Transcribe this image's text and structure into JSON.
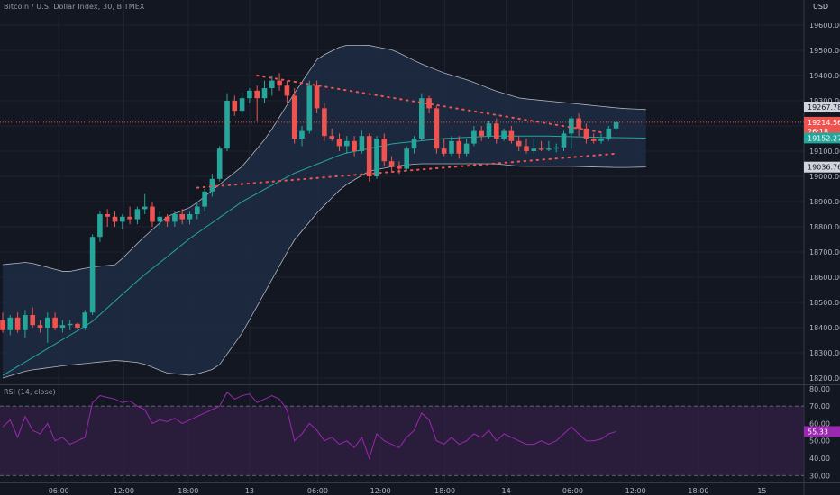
{
  "header": {
    "title": "Bitcoin / U.S. Dollar Index, 30, BITMEX",
    "currency": "USD"
  },
  "rsi_title": "RSI (14, close)",
  "colors": {
    "background": "#131722",
    "up": "#26a69a",
    "down": "#ef5350",
    "band_fill": "#1e2b43",
    "band_line": "#b2b5be",
    "basis": "#26a69a",
    "trendline": "#ef5350",
    "rsi_band": "#3a1f4d",
    "rsi_line": "#9c27b0",
    "grid": "#1f2330"
  },
  "chart_data": [
    {
      "type": "candlestick",
      "indicator": "bollinger-bands",
      "y_ticks": [
        "19600.00",
        "19500.00",
        "19400.00",
        "19300.00",
        "19200.00",
        "19100.00",
        "19000.00",
        "18900.00",
        "18800.00",
        "18700.00",
        "18600.00",
        "18500.00",
        "18400.00",
        "18300.00",
        "18200.00"
      ],
      "ylim": [
        18175,
        19700
      ],
      "x_ticks": [
        "06:00",
        "12:00",
        "18:00",
        "13",
        "06:00",
        "12:00",
        "18:00",
        "14",
        "06:00",
        "12:00",
        "18:00",
        "15"
      ],
      "price_labels": [
        {
          "text": "19267.78",
          "value": 19267.78,
          "kind": "upper"
        },
        {
          "text": "19214.56",
          "value": 19214.56,
          "kind": "last"
        },
        {
          "text": "26:18",
          "value": 19185,
          "kind": "countdown"
        },
        {
          "text": "19152.27",
          "value": 19152.27,
          "kind": "basis"
        },
        {
          "text": "19036.76",
          "value": 19036.76,
          "kind": "lower"
        }
      ],
      "candles": [
        {
          "o": 18430,
          "h": 18460,
          "l": 18380,
          "c": 18390
        },
        {
          "o": 18390,
          "h": 18450,
          "l": 18370,
          "c": 18440
        },
        {
          "o": 18440,
          "h": 18460,
          "l": 18380,
          "c": 18390
        },
        {
          "o": 18390,
          "h": 18470,
          "l": 18360,
          "c": 18450
        },
        {
          "o": 18450,
          "h": 18480,
          "l": 18400,
          "c": 18410
        },
        {
          "o": 18410,
          "h": 18430,
          "l": 18380,
          "c": 18400
        },
        {
          "o": 18400,
          "h": 18460,
          "l": 18340,
          "c": 18440
        },
        {
          "o": 18440,
          "h": 18460,
          "l": 18390,
          "c": 18400
        },
        {
          "o": 18400,
          "h": 18430,
          "l": 18380,
          "c": 18410
        },
        {
          "o": 18410,
          "h": 18430,
          "l": 18390,
          "c": 18415
        },
        {
          "o": 18415,
          "h": 18420,
          "l": 18395,
          "c": 18400
        },
        {
          "o": 18400,
          "h": 18470,
          "l": 18390,
          "c": 18460
        },
        {
          "o": 18460,
          "h": 18770,
          "l": 18450,
          "c": 18760
        },
        {
          "o": 18760,
          "h": 18860,
          "l": 18740,
          "c": 18850
        },
        {
          "o": 18850,
          "h": 18870,
          "l": 18800,
          "c": 18840
        },
        {
          "o": 18840,
          "h": 18860,
          "l": 18800,
          "c": 18820
        },
        {
          "o": 18820,
          "h": 18850,
          "l": 18790,
          "c": 18840
        },
        {
          "o": 18840,
          "h": 18880,
          "l": 18810,
          "c": 18830
        },
        {
          "o": 18830,
          "h": 18880,
          "l": 18810,
          "c": 18870
        },
        {
          "o": 18870,
          "h": 18930,
          "l": 18850,
          "c": 18880
        },
        {
          "o": 18880,
          "h": 18900,
          "l": 18800,
          "c": 18820
        },
        {
          "o": 18820,
          "h": 18860,
          "l": 18790,
          "c": 18840
        },
        {
          "o": 18840,
          "h": 18850,
          "l": 18800,
          "c": 18820
        },
        {
          "o": 18820,
          "h": 18860,
          "l": 18800,
          "c": 18850
        },
        {
          "o": 18850,
          "h": 18870,
          "l": 18810,
          "c": 18830
        },
        {
          "o": 18830,
          "h": 18860,
          "l": 18810,
          "c": 18850
        },
        {
          "o": 18850,
          "h": 18900,
          "l": 18830,
          "c": 18880
        },
        {
          "o": 18880,
          "h": 18950,
          "l": 18860,
          "c": 18940
        },
        {
          "o": 18940,
          "h": 19010,
          "l": 18920,
          "c": 18990
        },
        {
          "o": 18990,
          "h": 19120,
          "l": 18980,
          "c": 19110
        },
        {
          "o": 19110,
          "h": 19330,
          "l": 19100,
          "c": 19300
        },
        {
          "o": 19300,
          "h": 19320,
          "l": 19240,
          "c": 19260
        },
        {
          "o": 19260,
          "h": 19330,
          "l": 19240,
          "c": 19310
        },
        {
          "o": 19310,
          "h": 19350,
          "l": 19290,
          "c": 19340
        },
        {
          "o": 19340,
          "h": 19360,
          "l": 19220,
          "c": 19310
        },
        {
          "o": 19310,
          "h": 19380,
          "l": 19290,
          "c": 19350
        },
        {
          "o": 19350,
          "h": 19400,
          "l": 19320,
          "c": 19380
        },
        {
          "o": 19380,
          "h": 19410,
          "l": 19340,
          "c": 19360
        },
        {
          "o": 19360,
          "h": 19380,
          "l": 19290,
          "c": 19320
        },
        {
          "o": 19320,
          "h": 19350,
          "l": 19130,
          "c": 19150
        },
        {
          "o": 19150,
          "h": 19200,
          "l": 19120,
          "c": 19180
        },
        {
          "o": 19180,
          "h": 19380,
          "l": 19170,
          "c": 19360
        },
        {
          "o": 19360,
          "h": 19380,
          "l": 19250,
          "c": 19270
        },
        {
          "o": 19270,
          "h": 19290,
          "l": 19140,
          "c": 19160
        },
        {
          "o": 19160,
          "h": 19190,
          "l": 19140,
          "c": 19150
        },
        {
          "o": 19150,
          "h": 19170,
          "l": 19100,
          "c": 19120
        },
        {
          "o": 19120,
          "h": 19160,
          "l": 19090,
          "c": 19140
        },
        {
          "o": 19140,
          "h": 19160,
          "l": 19080,
          "c": 19100
        },
        {
          "o": 19100,
          "h": 19180,
          "l": 19090,
          "c": 19160
        },
        {
          "o": 19160,
          "h": 19170,
          "l": 18980,
          "c": 19000
        },
        {
          "o": 19000,
          "h": 19160,
          "l": 18990,
          "c": 19150
        },
        {
          "o": 19150,
          "h": 19170,
          "l": 19040,
          "c": 19060
        },
        {
          "o": 19060,
          "h": 19080,
          "l": 19020,
          "c": 19040
        },
        {
          "o": 19040,
          "h": 19060,
          "l": 19010,
          "c": 19030
        },
        {
          "o": 19030,
          "h": 19120,
          "l": 19020,
          "c": 19110
        },
        {
          "o": 19110,
          "h": 19160,
          "l": 19090,
          "c": 19150
        },
        {
          "o": 19150,
          "h": 19330,
          "l": 19140,
          "c": 19310
        },
        {
          "o": 19310,
          "h": 19320,
          "l": 19250,
          "c": 19270
        },
        {
          "o": 19270,
          "h": 19280,
          "l": 19090,
          "c": 19110
        },
        {
          "o": 19110,
          "h": 19150,
          "l": 19080,
          "c": 19090
        },
        {
          "o": 19090,
          "h": 19160,
          "l": 19080,
          "c": 19140
        },
        {
          "o": 19140,
          "h": 19160,
          "l": 19070,
          "c": 19090
        },
        {
          "o": 19090,
          "h": 19150,
          "l": 19080,
          "c": 19130
        },
        {
          "o": 19130,
          "h": 19200,
          "l": 19120,
          "c": 19180
        },
        {
          "o": 19180,
          "h": 19200,
          "l": 19140,
          "c": 19160
        },
        {
          "o": 19160,
          "h": 19220,
          "l": 19150,
          "c": 19210
        },
        {
          "o": 19210,
          "h": 19230,
          "l": 19130,
          "c": 19150
        },
        {
          "o": 19150,
          "h": 19190,
          "l": 19140,
          "c": 19180
        },
        {
          "o": 19180,
          "h": 19200,
          "l": 19130,
          "c": 19140
        },
        {
          "o": 19140,
          "h": 19160,
          "l": 19100,
          "c": 19120
        },
        {
          "o": 19120,
          "h": 19150,
          "l": 19090,
          "c": 19100
        },
        {
          "o": 19100,
          "h": 19150,
          "l": 19090,
          "c": 19110
        },
        {
          "o": 19110,
          "h": 19140,
          "l": 19100,
          "c": 19105
        },
        {
          "o": 19105,
          "h": 19140,
          "l": 19100,
          "c": 19110
        },
        {
          "o": 19110,
          "h": 19130,
          "l": 19095,
          "c": 19115
        },
        {
          "o": 19115,
          "h": 19180,
          "l": 19100,
          "c": 19170
        },
        {
          "o": 19170,
          "h": 19240,
          "l": 19110,
          "c": 19230
        },
        {
          "o": 19230,
          "h": 19250,
          "l": 19160,
          "c": 19190
        },
        {
          "o": 19190,
          "h": 19210,
          "l": 19130,
          "c": 19150
        },
        {
          "o": 19150,
          "h": 19170,
          "l": 19130,
          "c": 19140
        },
        {
          "o": 19140,
          "h": 19170,
          "l": 19130,
          "c": 19150
        },
        {
          "o": 19150,
          "h": 19200,
          "l": 19140,
          "c": 19190
        },
        {
          "o": 19190,
          "h": 19225,
          "l": 19180,
          "c": 19215
        }
      ],
      "bands": {
        "upper": [
          [
            18175,
            18650
          ],
          [
            18185,
            18660
          ],
          [
            18200,
            18620
          ],
          [
            18210,
            18640
          ],
          [
            18220,
            18650
          ],
          [
            18230,
            18750
          ],
          [
            18240,
            18840
          ],
          [
            18250,
            18880
          ],
          [
            18260,
            18960
          ],
          [
            18270,
            19040
          ],
          [
            18280,
            19160
          ],
          [
            18290,
            19320
          ],
          [
            18300,
            19470
          ],
          [
            18310,
            19520
          ],
          [
            18320,
            19520
          ],
          [
            18330,
            19500
          ],
          [
            18340,
            19450
          ],
          [
            18350,
            19410
          ],
          [
            18360,
            19380
          ],
          [
            18370,
            19340
          ],
          [
            18380,
            19310
          ],
          [
            18390,
            19300
          ],
          [
            18400,
            19290
          ],
          [
            18410,
            19280
          ],
          [
            18420,
            19270
          ],
          [
            18430,
            19265
          ]
        ],
        "lower": [
          [
            18175,
            18200
          ],
          [
            18185,
            18230
          ],
          [
            18200,
            18250
          ],
          [
            18210,
            18260
          ],
          [
            18220,
            18270
          ],
          [
            18230,
            18260
          ],
          [
            18240,
            18220
          ],
          [
            18250,
            18210
          ],
          [
            18260,
            18240
          ],
          [
            18270,
            18380
          ],
          [
            18280,
            18560
          ],
          [
            18290,
            18740
          ],
          [
            18300,
            18860
          ],
          [
            18310,
            18960
          ],
          [
            18320,
            19020
          ],
          [
            18330,
            19040
          ],
          [
            18340,
            19050
          ],
          [
            18350,
            19050
          ],
          [
            18360,
            19050
          ],
          [
            18370,
            19050
          ],
          [
            18380,
            19040
          ],
          [
            18390,
            19040
          ],
          [
            18400,
            19040
          ],
          [
            18410,
            19037
          ],
          [
            18420,
            19035
          ],
          [
            18430,
            19037
          ]
        ],
        "basis": [
          [
            18175,
            18210
          ],
          [
            18190,
            18300
          ],
          [
            18210,
            18420
          ],
          [
            18230,
            18600
          ],
          [
            18250,
            18760
          ],
          [
            18270,
            18900
          ],
          [
            18290,
            19010
          ],
          [
            18310,
            19090
          ],
          [
            18330,
            19130
          ],
          [
            18350,
            19150
          ],
          [
            18370,
            19160
          ],
          [
            18390,
            19160
          ],
          [
            18410,
            19155
          ],
          [
            18430,
            19152
          ]
        ]
      },
      "trendlines": [
        {
          "from": [
            34,
            19400
          ],
          "to": [
            80,
            19175
          ],
          "style": "dotted"
        },
        {
          "from": [
            26,
            18955
          ],
          "to": [
            82,
            19090
          ],
          "style": "dotted"
        }
      ]
    },
    {
      "type": "line",
      "name": "RSI (14, close)",
      "ylim": [
        26,
        82
      ],
      "y_ticks": [
        "80.00",
        "70.00",
        "60.00",
        "50.00",
        "40.00",
        "30.00"
      ],
      "band": [
        30,
        70
      ],
      "last_label": "55.33",
      "values": [
        58,
        62,
        52,
        64,
        56,
        54,
        60,
        50,
        52,
        48,
        50,
        52,
        72,
        76,
        75,
        74,
        72,
        73,
        70,
        68,
        60,
        62,
        61,
        63,
        60,
        62,
        64,
        66,
        68,
        70,
        78,
        74,
        76,
        77,
        72,
        74,
        76,
        74,
        68,
        50,
        54,
        60,
        56,
        50,
        52,
        48,
        50,
        46,
        52,
        40,
        54,
        50,
        48,
        46,
        52,
        56,
        66,
        62,
        50,
        48,
        52,
        48,
        50,
        54,
        52,
        56,
        50,
        54,
        52,
        50,
        48,
        48,
        50,
        48,
        50,
        54,
        58,
        54,
        50,
        50,
        51,
        54,
        55.33
      ]
    }
  ]
}
